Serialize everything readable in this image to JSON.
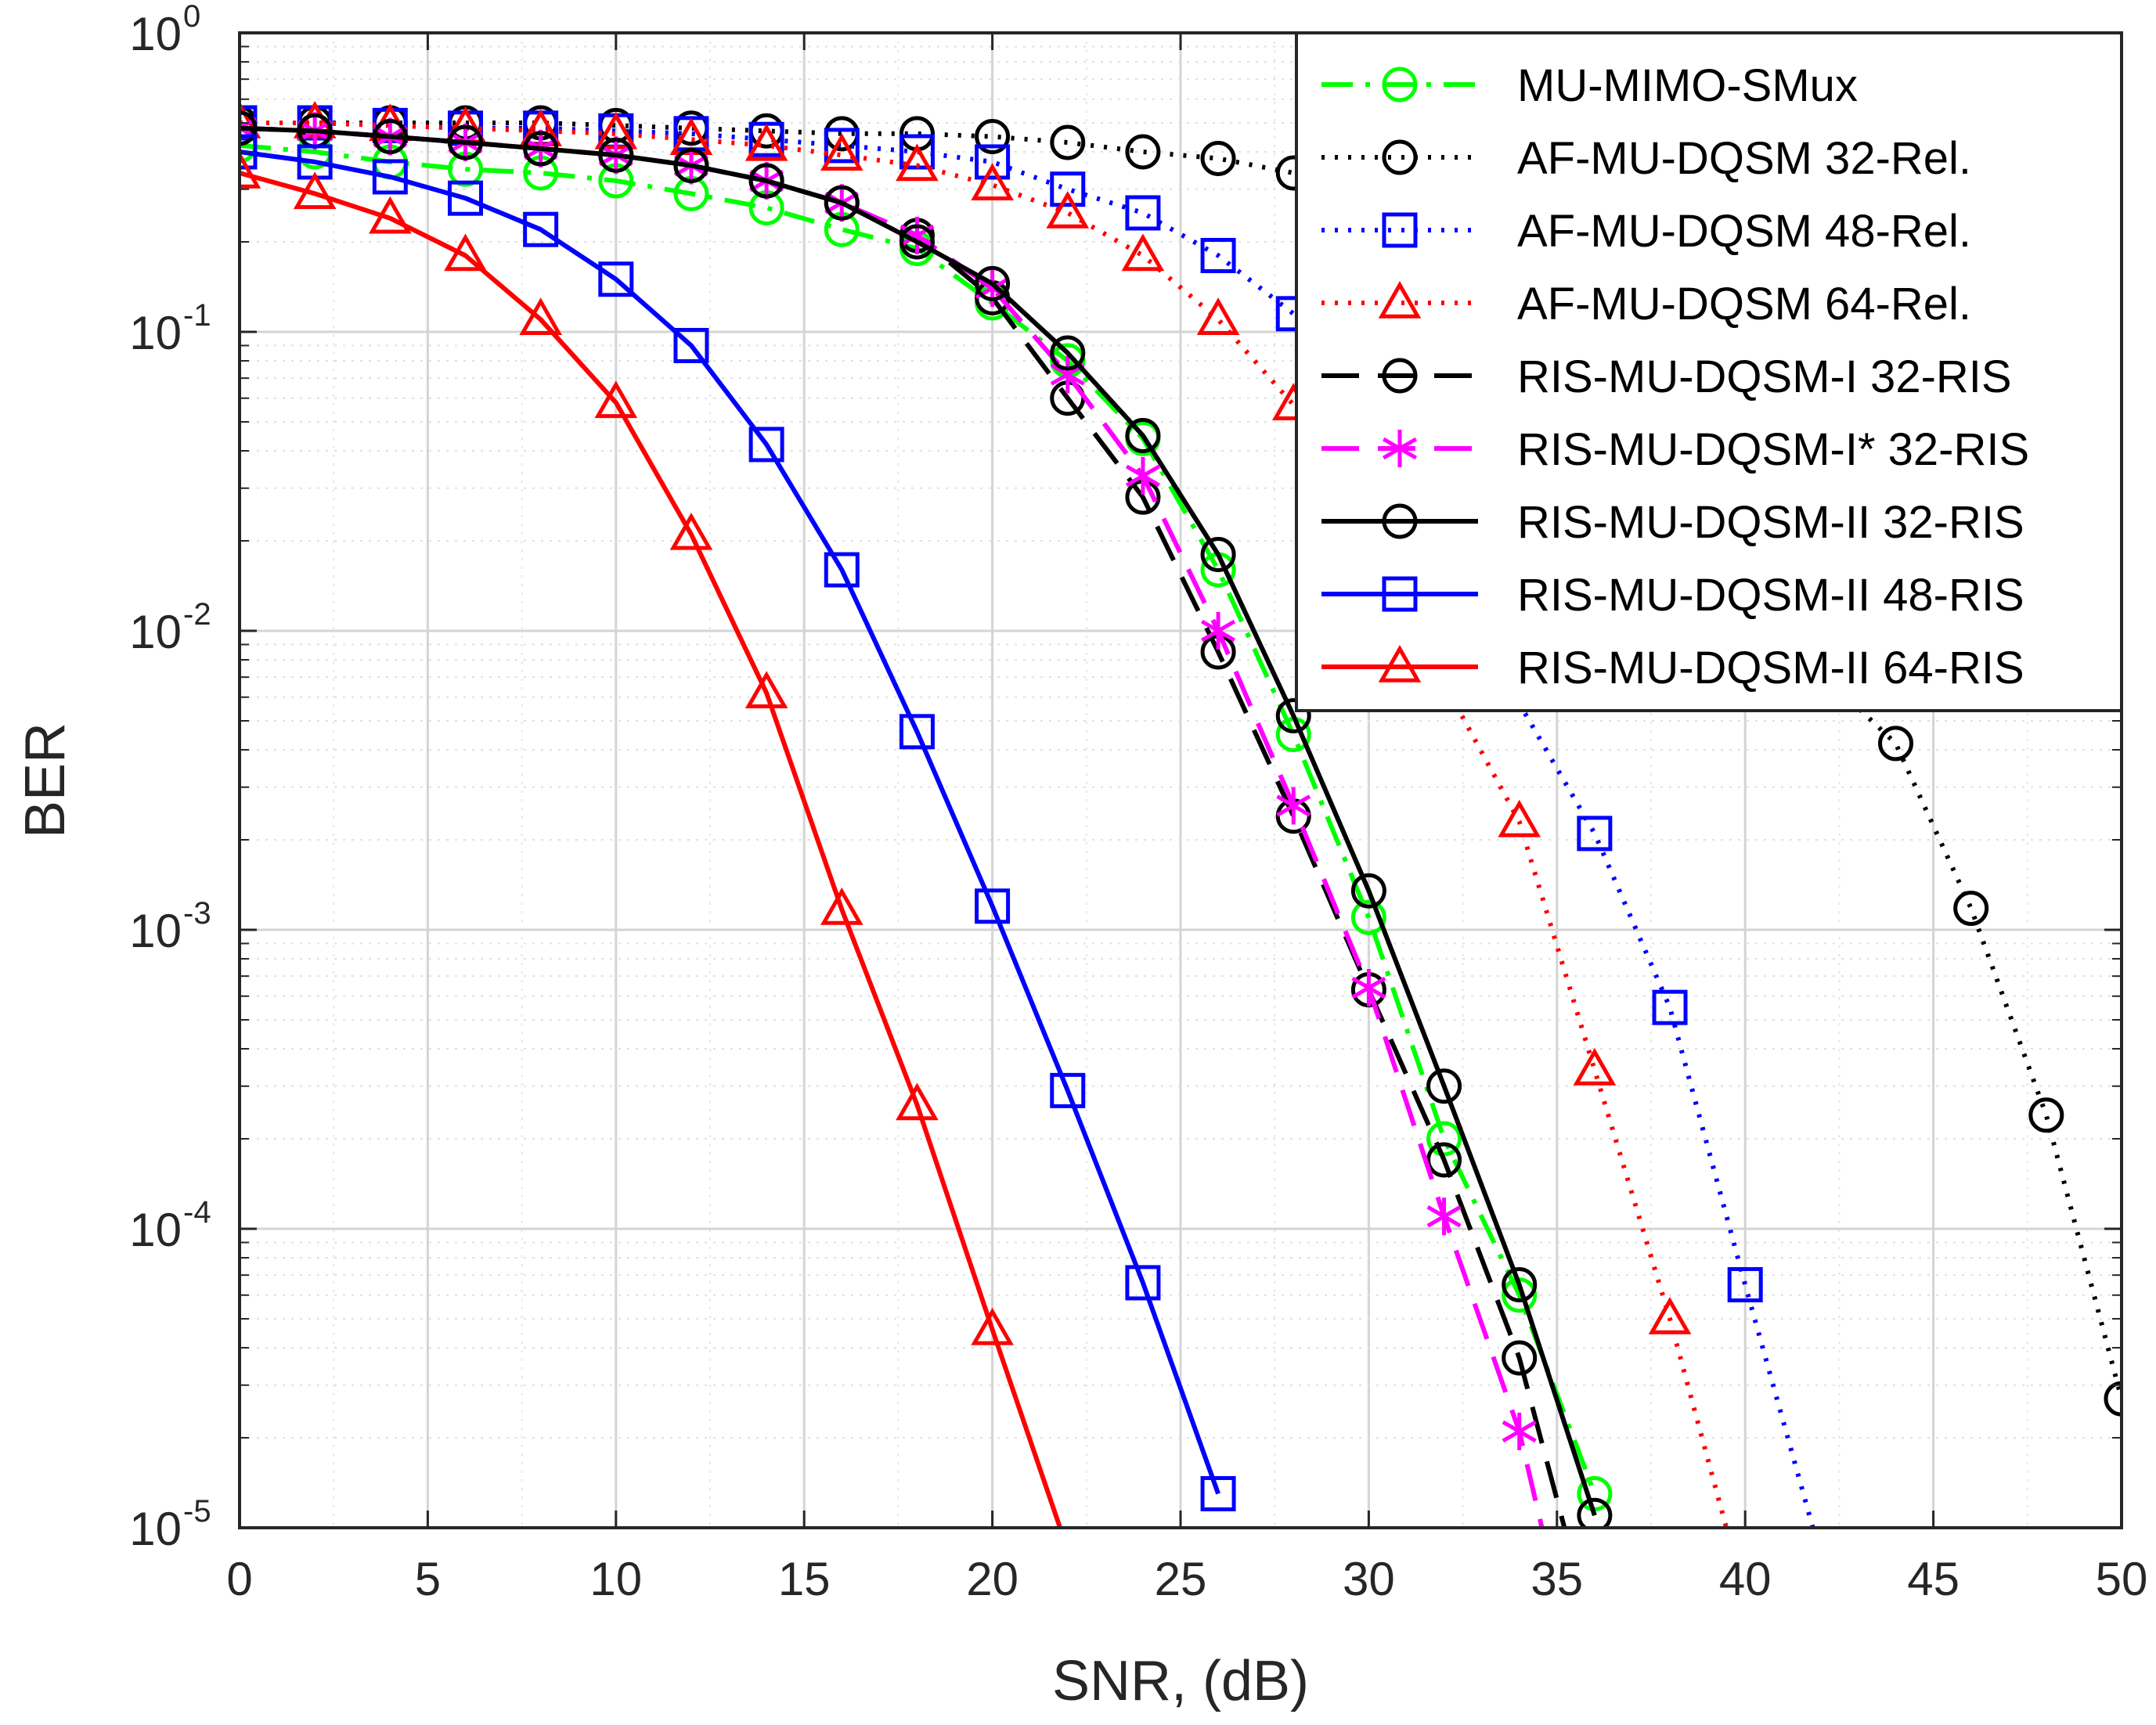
{
  "chart_data": {
    "type": "line",
    "title": "",
    "xlabel": "SNR, (dB)",
    "ylabel": "BER",
    "xlim": [
      0,
      50
    ],
    "ylim": [
      1e-05,
      1
    ],
    "yscale": "log",
    "grid": true,
    "legend_position": "top-right",
    "x_ticks": [
      "0",
      "5",
      "10",
      "15",
      "20",
      "25",
      "30",
      "35",
      "40",
      "45",
      "50"
    ],
    "y_ticks": [
      {
        "base": "10",
        "exp": "0"
      },
      {
        "base": "10",
        "exp": "-1"
      },
      {
        "base": "10",
        "exp": "-2"
      },
      {
        "base": "10",
        "exp": "-3"
      },
      {
        "base": "10",
        "exp": "-4"
      },
      {
        "base": "10",
        "exp": "-5"
      }
    ],
    "series": [
      {
        "name": "MU-MIMO-SMux",
        "color": "#00ff00",
        "line": "dashdot",
        "marker": "circle",
        "x": [
          0,
          2,
          4,
          6,
          8,
          10,
          12,
          14,
          16,
          18,
          20,
          22,
          24,
          26,
          28,
          30,
          32,
          34,
          36
        ],
        "y": [
          0.42,
          0.4,
          0.37,
          0.35,
          0.34,
          0.32,
          0.29,
          0.26,
          0.22,
          0.19,
          0.125,
          0.08,
          0.044,
          0.016,
          0.0045,
          0.0011,
          0.0002,
          6e-05,
          1.3e-05
        ]
      },
      {
        "name": "AF-MU-DQSM 32-Rel.",
        "color": "#000000",
        "line": "dotted",
        "marker": "circle",
        "x": [
          0,
          2,
          4,
          6,
          8,
          10,
          12,
          14,
          16,
          18,
          20,
          22,
          24,
          26,
          28,
          44,
          46,
          48,
          50
        ],
        "y": [
          0.5,
          0.5,
          0.5,
          0.5,
          0.5,
          0.49,
          0.48,
          0.47,
          0.46,
          0.46,
          0.45,
          0.43,
          0.4,
          0.38,
          0.34,
          0.0042,
          0.00118,
          0.00024,
          2.7e-05
        ]
      },
      {
        "name": "AF-MU-DQSM 48-Rel.",
        "color": "#0000ff",
        "line": "dotted",
        "marker": "square",
        "x": [
          0,
          2,
          4,
          6,
          8,
          10,
          12,
          14,
          16,
          18,
          20,
          22,
          24,
          26,
          28,
          36,
          38,
          40,
          41.8
        ],
        "y": [
          0.5,
          0.5,
          0.49,
          0.48,
          0.48,
          0.47,
          0.46,
          0.44,
          0.42,
          0.4,
          0.37,
          0.3,
          0.25,
          0.18,
          0.115,
          0.0021,
          0.00055,
          6.5e-05,
          1e-05
        ]
      },
      {
        "name": "AF-MU-DQSM 64-Rel.",
        "color": "#ff0000",
        "line": "dotted",
        "marker": "triangle",
        "x": [
          0,
          2,
          4,
          6,
          8,
          10,
          12,
          14,
          16,
          18,
          20,
          22,
          24,
          26,
          28,
          34,
          36,
          38,
          39.5
        ],
        "y": [
          0.5,
          0.5,
          0.49,
          0.48,
          0.47,
          0.46,
          0.44,
          0.42,
          0.39,
          0.36,
          0.31,
          0.25,
          0.18,
          0.11,
          0.057,
          0.0023,
          0.00034,
          5e-05,
          1e-05
        ]
      },
      {
        "name": "RIS-MU-DQSM-I 32-RIS",
        "color": "#000000",
        "line": "dashed",
        "marker": "circle",
        "x": [
          0,
          2,
          4,
          6,
          8,
          10,
          12,
          14,
          16,
          18,
          20,
          22,
          24,
          26,
          28,
          30,
          32,
          34,
          35.2
        ],
        "y": [
          0.48,
          0.47,
          0.45,
          0.43,
          0.41,
          0.39,
          0.36,
          0.32,
          0.27,
          0.21,
          0.13,
          0.06,
          0.028,
          0.0085,
          0.0024,
          0.00063,
          0.00017,
          3.7e-05,
          1e-05
        ]
      },
      {
        "name": "RIS-MU-DQSM-I* 32-RIS",
        "color": "#ff00ff",
        "line": "dashed",
        "marker": "asterisk",
        "x": [
          0,
          2,
          4,
          6,
          8,
          10,
          12,
          14,
          16,
          18,
          20,
          22,
          24,
          26,
          28,
          30,
          32,
          34,
          34.6
        ],
        "y": [
          0.48,
          0.47,
          0.45,
          0.43,
          0.41,
          0.39,
          0.36,
          0.32,
          0.27,
          0.21,
          0.14,
          0.072,
          0.033,
          0.01,
          0.0026,
          0.00064,
          0.00011,
          2.1e-05,
          1e-05
        ]
      },
      {
        "name": "RIS-MU-DQSM-II 32-RIS",
        "color": "#000000",
        "line": "solid",
        "marker": "circle",
        "x": [
          0,
          2,
          4,
          6,
          8,
          10,
          12,
          14,
          16,
          18,
          20,
          22,
          24,
          26,
          28,
          30,
          32,
          34,
          36
        ],
        "y": [
          0.48,
          0.47,
          0.45,
          0.43,
          0.41,
          0.39,
          0.36,
          0.32,
          0.27,
          0.2,
          0.145,
          0.085,
          0.045,
          0.018,
          0.0052,
          0.00135,
          0.0003,
          6.5e-05,
          1.1e-05
        ]
      },
      {
        "name": "RIS-MU-DQSM-II 48-RIS",
        "color": "#0000ff",
        "line": "solid",
        "marker": "square",
        "x": [
          0,
          2,
          4,
          6,
          8,
          10,
          12,
          14,
          16,
          18,
          20,
          22,
          24,
          26
        ],
        "y": [
          0.4,
          0.37,
          0.33,
          0.28,
          0.22,
          0.15,
          0.09,
          0.042,
          0.016,
          0.0046,
          0.0012,
          0.00029,
          6.6e-05,
          1.3e-05
        ]
      },
      {
        "name": "RIS-MU-DQSM-II 64-RIS",
        "color": "#ff0000",
        "line": "solid",
        "marker": "triangle",
        "x": [
          0,
          2,
          4,
          6,
          8,
          10,
          12,
          14,
          16,
          18,
          20,
          21.8
        ],
        "y": [
          0.34,
          0.29,
          0.24,
          0.18,
          0.11,
          0.058,
          0.021,
          0.0062,
          0.00117,
          0.00026,
          4.6e-05,
          1e-05
        ]
      }
    ]
  }
}
